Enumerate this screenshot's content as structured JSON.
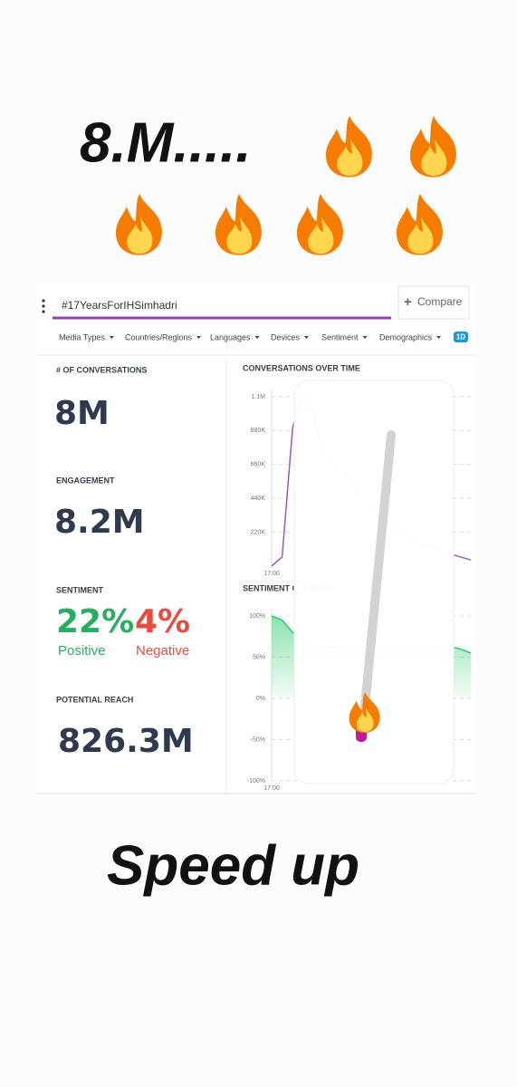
{
  "caption": {
    "top": "8.M.....",
    "bottom": "Speed up"
  },
  "search": {
    "query": "#17YearsForIHSimhadri",
    "compare": "Compare"
  },
  "filters": [
    "Media Types",
    "Countries/Regions",
    "Languages",
    "Devices",
    "Sentiment",
    "Demographics"
  ],
  "range_badge": "1D",
  "metrics": {
    "conversations": {
      "label": "# OF CONVERSATIONS",
      "value": "8M"
    },
    "engagement": {
      "label": "ENGAGEMENT",
      "value": "8.2M"
    },
    "sentiment": {
      "label": "SENTIMENT",
      "positive": "22%",
      "positive_label": "Positive",
      "negative": "4%",
      "negative_label": "Negative"
    },
    "reach": {
      "label": "POTENTIAL REACH",
      "value": "826.3M"
    }
  },
  "chart_data": [
    {
      "type": "line",
      "title": "CONVERSATIONS OVER TIME",
      "color": "#9b59b6",
      "categories": [
        "17:00",
        null,
        null,
        null,
        null,
        null,
        null,
        null,
        null,
        null,
        null,
        null,
        null,
        null,
        null,
        null,
        null,
        null,
        null,
        null
      ],
      "values": [
        0,
        60000,
        900000,
        1130000,
        1000000,
        720000,
        660000,
        600000,
        500000,
        400000,
        330000,
        280000,
        230000,
        190000,
        160000,
        130000,
        100000,
        80000,
        60000,
        40000
      ],
      "ylim": [
        0,
        1100000
      ],
      "yticks": [
        {
          "value": 220000,
          "label": "220K"
        },
        {
          "value": 440000,
          "label": "440K"
        },
        {
          "value": 660000,
          "label": "660K"
        },
        {
          "value": 880000,
          "label": "880K"
        },
        {
          "value": 1100000,
          "label": "1.1M"
        }
      ],
      "grid": true
    },
    {
      "type": "area",
      "title": "SENTIMENT OVER TIME",
      "color": "#2ecc71",
      "categories": [
        "17:00",
        null,
        null,
        null,
        null,
        null,
        null,
        null,
        null,
        null,
        null,
        null,
        null,
        null,
        null,
        null,
        null,
        null,
        null,
        null
      ],
      "values": [
        100,
        95,
        80,
        70,
        65,
        63,
        62,
        61,
        60,
        60,
        60,
        60,
        60,
        60,
        60,
        60,
        62,
        63,
        60,
        55
      ],
      "ylim": [
        -100,
        100
      ],
      "yticks": [
        {
          "value": -100,
          "label": "-100%"
        },
        {
          "value": -50,
          "label": "-50%"
        },
        {
          "value": 0,
          "label": "0%"
        },
        {
          "value": 50,
          "label": "50%"
        },
        {
          "value": 100,
          "label": "100%"
        }
      ],
      "grid": true
    }
  ]
}
